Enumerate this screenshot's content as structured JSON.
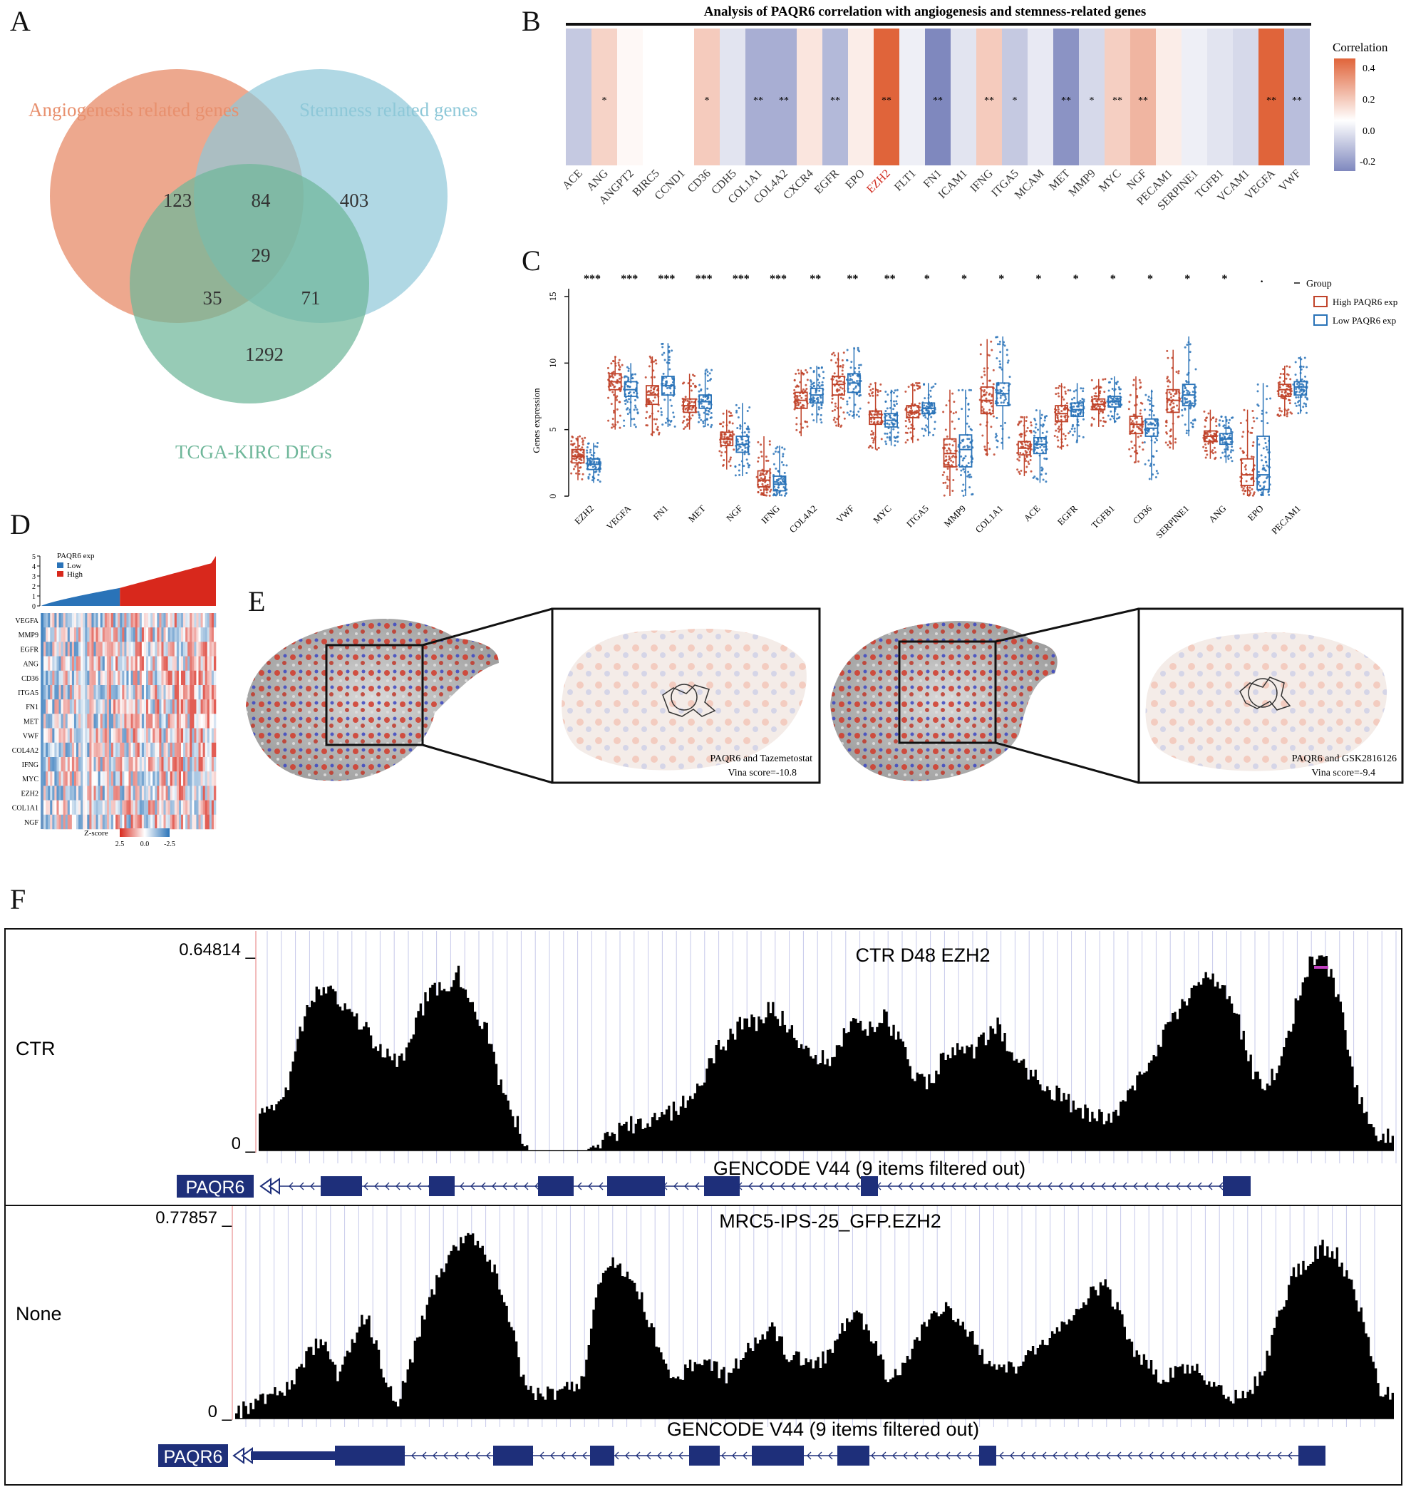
{
  "panels": {
    "A": {
      "letter": "A",
      "labels": {
        "angio": "Angiogenesis related genes",
        "stem": "Stemness related genes",
        "tcga": "TCGA-KIRC DEGs"
      },
      "counts": {
        "angio_only": "123",
        "angio_stem": "84",
        "stem_only": "403",
        "all_three": "29",
        "angio_tcga": "35",
        "stem_tcga": "71",
        "tcga_only": "1292"
      },
      "colors": {
        "angio": "#e8906e",
        "stem": "#8ec8d8",
        "tcga": "#6fb79a"
      }
    },
    "B": {
      "letter": "B",
      "title": "Analysis of PAQR6 correlation with angiogenesis and stemness-related genes",
      "legend_title": "Correlation",
      "legend_ticks": [
        "0.4",
        "0.2",
        "0.0",
        "-0.2"
      ]
    },
    "C": {
      "letter": "C",
      "ylabel": "Genes expression",
      "legend_title": "Group",
      "legend_high": "High PAQR6 exp",
      "legend_low": "Low PAQR6 exp",
      "colors": {
        "high": "#c0432a",
        "low": "#2a73b8"
      }
    },
    "D": {
      "letter": "D",
      "legend_title": "PAQR6 exp",
      "legend_low": "Low",
      "legend_high": "High",
      "yticks": [
        "5",
        "4",
        "3",
        "2",
        "1",
        "0"
      ],
      "genes": [
        "VEGFA",
        "MMP9",
        "EGFR",
        "ANG",
        "CD36",
        "ITGA5",
        "FN1",
        "MET",
        "VWF",
        "COL4A2",
        "IFNG",
        "MYC",
        "EZH2",
        "COL1A1",
        "NGF"
      ],
      "zscore_label": "Z-score",
      "zscore_ticks": [
        "2.5",
        "0.0",
        "-2.5"
      ]
    },
    "E": {
      "letter": "E",
      "left_caption": "PAQR6 and Tazemetostat",
      "left_score": "Vina score=-10.8",
      "right_caption": "PAQR6 and GSK2816126",
      "right_score": "Vina score=-9.4"
    },
    "F": {
      "letter": "F",
      "track1": {
        "ymax": "0.64814 _",
        "ymin": "0 _",
        "title": "CTR D48 EZH2",
        "side": "CTR",
        "gencode": "GENCODE V44 (9 items filtered out)",
        "gene": "PAQR6"
      },
      "track2": {
        "ymax": "0.77857 _",
        "ymin": "0 _",
        "title": "MRC5-IPS-25_GFP.EZH2",
        "side": "None",
        "gencode": "GENCODE V44 (9 items filtered out)",
        "gene": "PAQR6"
      }
    }
  },
  "chart_data": [
    {
      "type": "heatmap",
      "panel": "B",
      "title": "Analysis of PAQR6 correlation with angiogenesis and stemness-related genes",
      "categories": [
        "ACE",
        "ANG",
        "ANGPT2",
        "BIRC5",
        "CCND1",
        "CD36",
        "CDH5",
        "COL1A1",
        "COL4A2",
        "CXCR4",
        "EGFR",
        "EPO",
        "EZH2",
        "FLT1",
        "FN1",
        "ICAM1",
        "IFNG",
        "ITGA5",
        "MCAM",
        "MET",
        "MMP9",
        "MYC",
        "NGF",
        "PECAM1",
        "SERPINE1",
        "TGFB1",
        "VCAM1",
        "VEGFA",
        "VWF"
      ],
      "values": [
        -0.1,
        0.12,
        0.02,
        0.0,
        0.0,
        0.14,
        -0.05,
        -0.15,
        -0.15,
        0.07,
        -0.13,
        0.05,
        0.42,
        -0.03,
        -0.22,
        -0.05,
        0.14,
        -0.1,
        -0.04,
        -0.2,
        -0.07,
        0.13,
        0.2,
        0.05,
        -0.03,
        -0.05,
        -0.07,
        0.42,
        -0.12
      ],
      "significance": [
        "",
        "*",
        "",
        "",
        "",
        "*",
        "",
        "**",
        "**",
        "",
        "**",
        "",
        "**",
        "",
        "**",
        "",
        "**",
        "*",
        "",
        "**",
        "*",
        "**",
        "**",
        "",
        "",
        "",
        "",
        "**",
        "**"
      ],
      "highlight": "EZH2",
      "legend": "Correlation",
      "range": [
        -0.25,
        0.45
      ]
    },
    {
      "type": "box",
      "panel": "C",
      "ylabel": "Genes expression",
      "ylim": [
        0,
        15
      ],
      "yticks": [
        "0",
        "5",
        "10",
        "15"
      ],
      "categories": [
        "EZH2",
        "VEGFA",
        "FN1",
        "MET",
        "NGF",
        "IFNG",
        "COL4A2",
        "VWF",
        "MYC",
        "ITGA5",
        "MMP9",
        "COL1A1",
        "ACE",
        "EGFR",
        "TGFB1",
        "CD36",
        "SERPINE1",
        "ANG",
        "EPO",
        "PECAM1"
      ],
      "significance": [
        "***",
        "***",
        "***",
        "***",
        "***",
        "***",
        "**",
        "**",
        "**",
        "*",
        "*",
        "*",
        "*",
        "*",
        "*",
        "*",
        "*",
        "*",
        ".",
        ""
      ],
      "series": [
        {
          "name": "High PAQR6 exp",
          "medians": [
            3.0,
            8.6,
            7.6,
            6.8,
            4.3,
            1.2,
            7.2,
            8.4,
            5.9,
            6.3,
            3.2,
            7.2,
            3.6,
            6.2,
            6.9,
            5.4,
            7.2,
            4.5,
            1.6,
            8.0
          ],
          "q1": [
            2.5,
            8.0,
            6.9,
            6.3,
            3.8,
            0.7,
            6.6,
            7.6,
            5.4,
            5.9,
            2.2,
            6.2,
            3.1,
            5.6,
            6.5,
            4.7,
            6.3,
            4.1,
            0.8,
            7.5
          ],
          "q3": [
            3.5,
            9.2,
            8.3,
            7.3,
            4.8,
            1.9,
            7.8,
            9.0,
            6.4,
            6.8,
            4.3,
            8.2,
            4.1,
            6.8,
            7.3,
            6.0,
            8.0,
            4.9,
            2.8,
            8.4
          ],
          "min": [
            1.2,
            5.0,
            4.5,
            5.0,
            2.0,
            0.0,
            4.5,
            5.2,
            3.5,
            4.0,
            0.0,
            3.0,
            1.5,
            3.5,
            5.2,
            2.5,
            3.5,
            2.8,
            0.0,
            6.0
          ],
          "max": [
            4.5,
            10.5,
            10.5,
            9.2,
            6.5,
            4.5,
            9.5,
            10.8,
            8.5,
            8.5,
            8.0,
            11.8,
            6.0,
            8.5,
            8.8,
            9.0,
            11.0,
            6.5,
            6.5,
            9.8
          ]
        },
        {
          "name": "Low PAQR6 exp",
          "medians": [
            2.4,
            8.0,
            8.3,
            7.1,
            3.9,
            0.9,
            7.6,
            8.5,
            5.7,
            6.6,
            3.5,
            7.7,
            3.9,
            6.5,
            7.1,
            5.1,
            7.6,
            4.3,
            1.6,
            8.2
          ],
          "q1": [
            2.0,
            7.5,
            7.6,
            6.6,
            3.3,
            0.4,
            7.0,
            7.8,
            5.2,
            6.2,
            2.2,
            6.8,
            3.2,
            6.0,
            6.7,
            4.5,
            6.8,
            3.9,
            0.5,
            7.6
          ],
          "q3": [
            2.8,
            8.6,
            9.0,
            7.6,
            4.5,
            1.5,
            8.1,
            9.2,
            6.2,
            7.0,
            4.6,
            8.5,
            4.4,
            7.0,
            7.5,
            5.8,
            8.4,
            4.7,
            4.5,
            8.6
          ],
          "min": [
            1.0,
            5.2,
            5.2,
            5.2,
            1.5,
            0.0,
            5.5,
            5.8,
            3.8,
            4.5,
            0.0,
            3.5,
            1.0,
            4.0,
            5.5,
            1.2,
            4.5,
            2.5,
            0.0,
            6.2
          ],
          "max": [
            4.0,
            10.0,
            11.5,
            9.5,
            7.0,
            3.8,
            9.8,
            11.2,
            8.0,
            8.5,
            8.0,
            12.0,
            6.5,
            8.5,
            9.0,
            8.0,
            12.0,
            6.0,
            8.5,
            10.5
          ]
        }
      ]
    },
    {
      "type": "area",
      "panel": "D",
      "title": "PAQR6 exp",
      "ylim": [
        0,
        5
      ],
      "groups": [
        "Low",
        "High"
      ],
      "split_fraction": 0.45,
      "range_low": [
        0.0,
        1.8
      ],
      "range_high": [
        1.8,
        5.0
      ]
    },
    {
      "type": "area",
      "panel": "F",
      "title": "CTR D48 EZH2",
      "ylim": [
        0,
        0.64814
      ],
      "x": [
        0,
        1,
        2,
        3,
        4,
        5,
        6,
        7,
        8,
        9,
        10,
        11,
        12,
        13,
        14,
        15,
        16,
        17,
        18,
        19,
        20,
        21,
        22,
        23,
        24,
        25,
        26,
        27,
        28,
        29,
        30,
        31,
        32,
        33,
        34,
        35,
        36,
        37,
        38,
        39,
        40,
        41,
        42,
        43,
        44,
        45,
        46,
        47,
        48,
        49,
        50,
        51,
        52,
        53,
        54,
        55,
        56,
        57,
        58,
        59,
        60,
        61,
        62,
        63,
        64,
        65,
        66,
        67,
        68,
        69,
        70,
        71,
        72,
        73,
        74,
        75,
        76,
        77,
        78,
        79
      ],
      "values": [
        0.1,
        0.15,
        0.2,
        0.4,
        0.5,
        0.5,
        0.45,
        0.4,
        0.35,
        0.3,
        0.28,
        0.4,
        0.5,
        0.5,
        0.55,
        0.45,
        0.38,
        0.2,
        0.1,
        0.0,
        0.0,
        0.0,
        0.0,
        0.0,
        0.03,
        0.05,
        0.08,
        0.08,
        0.1,
        0.12,
        0.15,
        0.2,
        0.3,
        0.35,
        0.4,
        0.4,
        0.45,
        0.4,
        0.35,
        0.3,
        0.28,
        0.35,
        0.4,
        0.38,
        0.42,
        0.35,
        0.25,
        0.2,
        0.28,
        0.32,
        0.3,
        0.35,
        0.4,
        0.3,
        0.25,
        0.22,
        0.18,
        0.15,
        0.12,
        0.12,
        0.1,
        0.15,
        0.22,
        0.3,
        0.4,
        0.45,
        0.52,
        0.55,
        0.5,
        0.4,
        0.25,
        0.2,
        0.3,
        0.45,
        0.58,
        0.62,
        0.48,
        0.25,
        0.1,
        0.05
      ]
    },
    {
      "type": "area",
      "panel": "F",
      "title": "MRC5-IPS-25_GFP.EZH2",
      "ylim": [
        0,
        0.77857
      ],
      "x": [
        0,
        1,
        2,
        3,
        4,
        5,
        6,
        7,
        8,
        9,
        10,
        11,
        12,
        13,
        14,
        15,
        16,
        17,
        18,
        19,
        20,
        21,
        22,
        23,
        24,
        25,
        26,
        27,
        28,
        29,
        30,
        31,
        32,
        33,
        34,
        35,
        36,
        37,
        38,
        39,
        40,
        41,
        42,
        43,
        44,
        45,
        46,
        47,
        48,
        49,
        50,
        51,
        52,
        53,
        54,
        55,
        56,
        57,
        58,
        59,
        60,
        61,
        62,
        63,
        64,
        65,
        66,
        67,
        68,
        69,
        70,
        71,
        72,
        73,
        74,
        75,
        76,
        77,
        78,
        79
      ],
      "values": [
        0.02,
        0.05,
        0.08,
        0.1,
        0.15,
        0.25,
        0.3,
        0.15,
        0.3,
        0.4,
        0.2,
        0.05,
        0.2,
        0.4,
        0.55,
        0.65,
        0.7,
        0.65,
        0.55,
        0.35,
        0.1,
        0.1,
        0.1,
        0.12,
        0.15,
        0.5,
        0.6,
        0.55,
        0.45,
        0.3,
        0.15,
        0.18,
        0.22,
        0.2,
        0.15,
        0.25,
        0.3,
        0.35,
        0.25,
        0.22,
        0.2,
        0.25,
        0.35,
        0.4,
        0.3,
        0.15,
        0.2,
        0.3,
        0.4,
        0.42,
        0.35,
        0.3,
        0.2,
        0.18,
        0.2,
        0.25,
        0.3,
        0.35,
        0.4,
        0.48,
        0.5,
        0.4,
        0.25,
        0.2,
        0.15,
        0.18,
        0.2,
        0.15,
        0.1,
        0.08,
        0.1,
        0.2,
        0.4,
        0.55,
        0.6,
        0.65,
        0.62,
        0.5,
        0.35,
        0.1
      ]
    }
  ]
}
